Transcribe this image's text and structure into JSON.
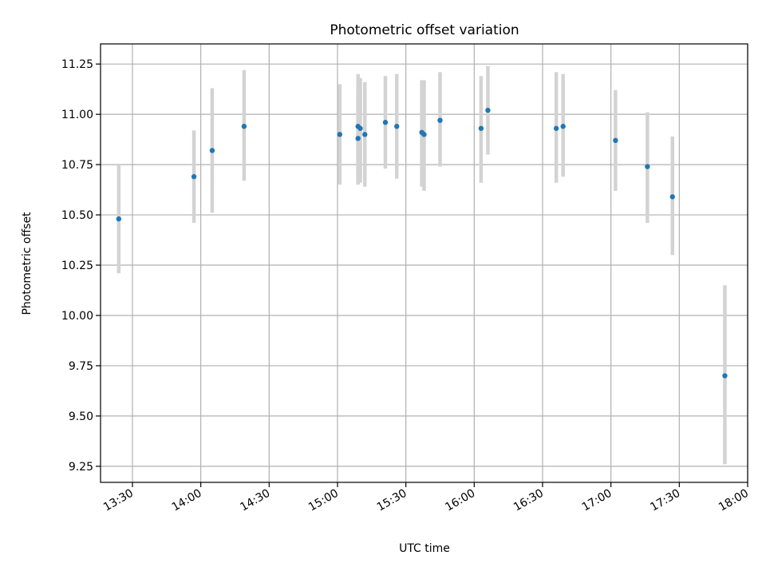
{
  "chart_data": {
    "type": "scatter",
    "title": "Photometric offset variation",
    "xlabel": "UTC time",
    "ylabel": "Photometric offset",
    "x_tick_labels": [
      "13:30",
      "14:00",
      "14:30",
      "15:00",
      "15:30",
      "16:00",
      "16:30",
      "17:00",
      "17:30",
      "18:00"
    ],
    "y_tick_labels": [
      "9.25",
      "9.50",
      "9.75",
      "10.00",
      "10.25",
      "10.50",
      "10.75",
      "11.00",
      "11.25"
    ],
    "y_ticks": [
      9.25,
      9.5,
      9.75,
      10.0,
      10.25,
      10.5,
      10.75,
      11.0,
      11.25
    ],
    "xlim": [
      "13:16",
      "18:00"
    ],
    "ylim": [
      9.17,
      11.35
    ],
    "grid": true,
    "error_bars": true,
    "colors": {
      "point": "#1f77b4",
      "error_bar": "#d3d3d3",
      "grid": "#b0b0b0"
    },
    "points": [
      {
        "time": "13:24",
        "y": 10.48,
        "low": 10.21,
        "high": 10.75
      },
      {
        "time": "13:57",
        "y": 10.69,
        "low": 10.46,
        "high": 10.92
      },
      {
        "time": "14:05",
        "y": 10.82,
        "low": 10.51,
        "high": 11.13
      },
      {
        "time": "14:19",
        "y": 10.94,
        "low": 10.67,
        "high": 11.22
      },
      {
        "time": "15:01",
        "y": 10.9,
        "low": 10.65,
        "high": 11.15
      },
      {
        "time": "15:09",
        "y": 10.88,
        "low": 10.65,
        "high": 11.12
      },
      {
        "time": "15:09",
        "y": 10.94,
        "low": 10.67,
        "high": 11.2
      },
      {
        "time": "15:10",
        "y": 10.93,
        "low": 10.66,
        "high": 11.18
      },
      {
        "time": "15:12",
        "y": 10.9,
        "low": 10.64,
        "high": 11.16
      },
      {
        "time": "15:21",
        "y": 10.96,
        "low": 10.73,
        "high": 11.19
      },
      {
        "time": "15:26",
        "y": 10.94,
        "low": 10.68,
        "high": 11.2
      },
      {
        "time": "15:37",
        "y": 10.91,
        "low": 10.64,
        "high": 11.17
      },
      {
        "time": "15:38",
        "y": 10.9,
        "low": 10.62,
        "high": 11.17
      },
      {
        "time": "15:45",
        "y": 10.97,
        "low": 10.74,
        "high": 11.21
      },
      {
        "time": "16:03",
        "y": 10.93,
        "low": 10.66,
        "high": 11.19
      },
      {
        "time": "16:06",
        "y": 11.02,
        "low": 10.8,
        "high": 11.24
      },
      {
        "time": "16:36",
        "y": 10.93,
        "low": 10.66,
        "high": 11.21
      },
      {
        "time": "16:39",
        "y": 10.94,
        "low": 10.69,
        "high": 11.2
      },
      {
        "time": "17:02",
        "y": 10.87,
        "low": 10.62,
        "high": 11.12
      },
      {
        "time": "17:16",
        "y": 10.74,
        "low": 10.46,
        "high": 11.01
      },
      {
        "time": "17:27",
        "y": 10.59,
        "low": 10.3,
        "high": 10.89
      },
      {
        "time": "17:50",
        "y": 9.7,
        "low": 9.26,
        "high": 10.15
      }
    ]
  }
}
